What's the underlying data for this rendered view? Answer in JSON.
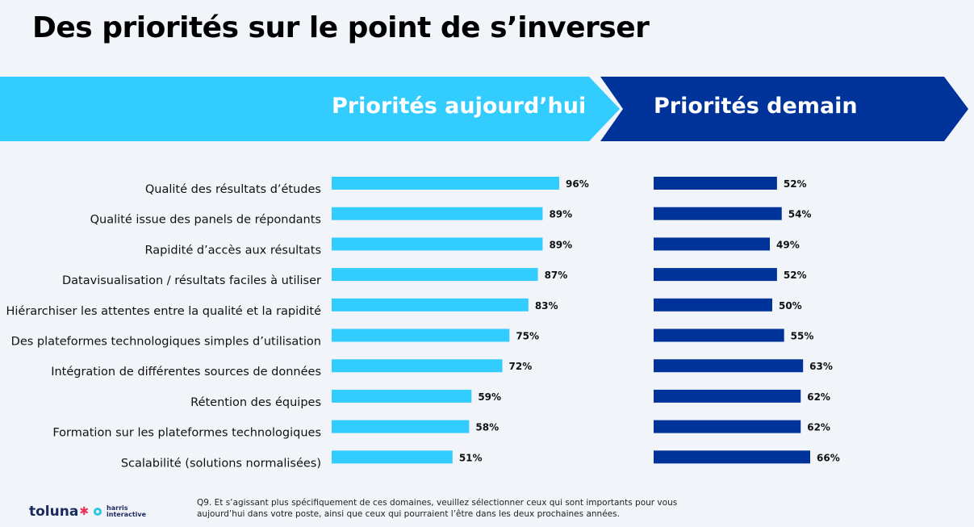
{
  "title": "Des priorités sur le point de s’inverser",
  "banner": {
    "left_label": "Priorités aujourd’hui",
    "right_label": "Priorités demain"
  },
  "colors": {
    "today": "#33ccff",
    "tomorrow": "#003399",
    "banner_today": "#33ccff",
    "banner_tomorrow": "#003399"
  },
  "chart_data": {
    "type": "bar",
    "orientation": "horizontal",
    "categories": [
      "Qualité des résultats d’études",
      "Qualité issue des panels de répondants",
      "Rapidité d’accès aux résultats",
      "Datavisualisation / résultats faciles à utiliser",
      "Hiérarchiser les attentes entre la qualité et la rapidité",
      "Des plateformes technologiques simples d’utilisation",
      "Intégration de différentes sources de données",
      "Rétention des équipes",
      "Formation sur les plateformes technologiques",
      "Scalabilité (solutions normalisées)"
    ],
    "series": [
      {
        "name": "Priorités aujourd’hui",
        "values": [
          96,
          89,
          89,
          87,
          83,
          75,
          72,
          59,
          58,
          51
        ]
      },
      {
        "name": "Priorités demain",
        "values": [
          52,
          54,
          49,
          52,
          50,
          55,
          63,
          62,
          62,
          66
        ]
      }
    ],
    "value_suffix": "%",
    "xlim": [
      0,
      100
    ],
    "grid": false
  },
  "footnote": {
    "line1": "Q9. Et s’agissant plus spécifiquement de ces domaines, veuillez sélectionner ceux qui sont importants pour vous",
    "line2": "aujourd’hui dans votre poste, ainsi que ceux qui pourraient l’être dans les deux prochaines années."
  },
  "logo": {
    "toluna": "toluna",
    "harris_line1": "harris",
    "harris_line2": "interactive"
  }
}
